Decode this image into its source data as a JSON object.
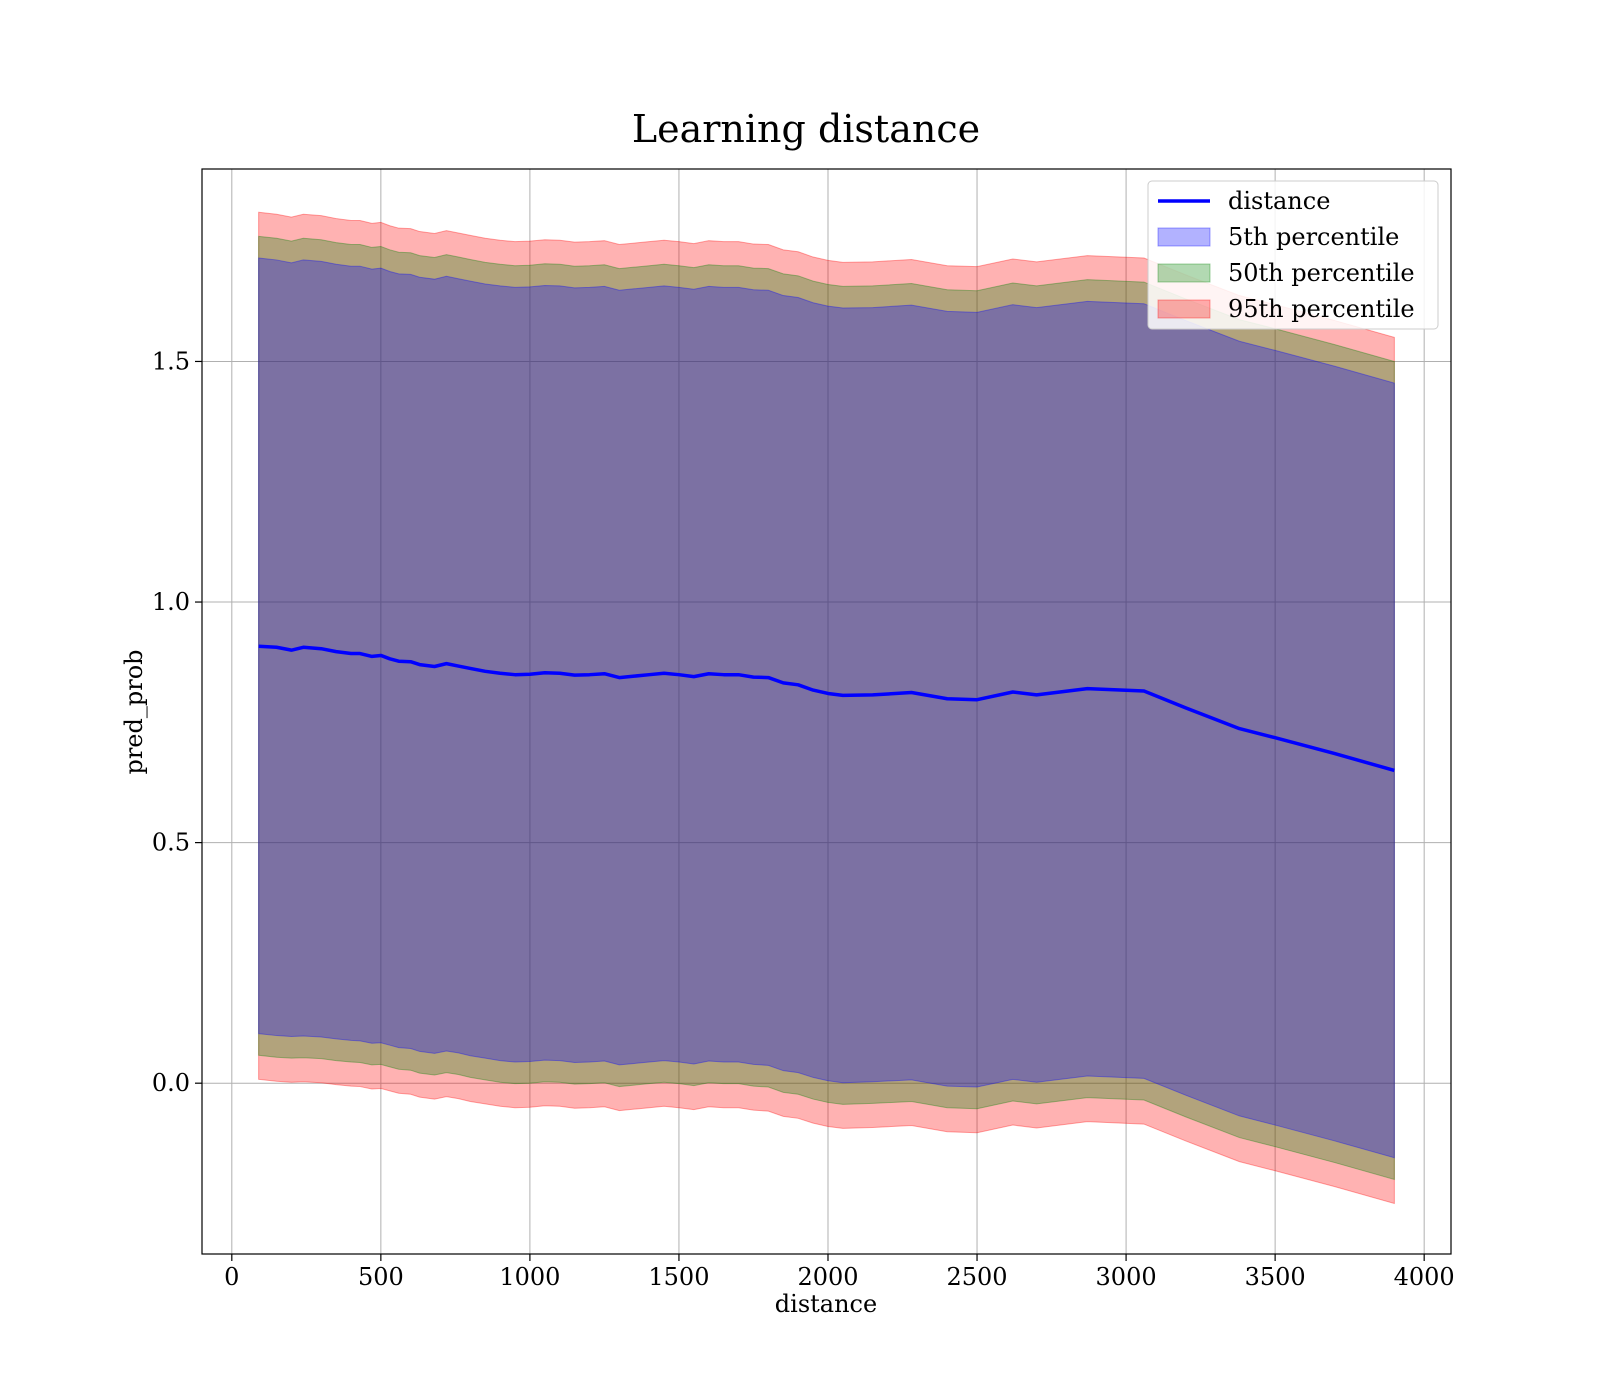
{
  "chart_data": {
    "type": "area",
    "title": "Learning distance",
    "xlabel": "distance",
    "ylabel": "pred_prob",
    "xlim": [
      -100,
      4090
    ],
    "ylim": [
      -0.355,
      1.9
    ],
    "xticks": [
      0,
      500,
      1000,
      1500,
      2000,
      2500,
      3000,
      3500,
      4000
    ],
    "xtick_labels": [
      "0",
      "500",
      "1000",
      "1500",
      "2000",
      "2500",
      "3000",
      "3500",
      "4000"
    ],
    "yticks": [
      0.0,
      0.5,
      1.0,
      1.5
    ],
    "ytick_labels": [
      "0.0",
      "0.5",
      "1.0",
      "1.5"
    ],
    "grid": true,
    "legend_position": "top-right",
    "legend": [
      {
        "label": "distance",
        "kind": "line",
        "color": "#0000ff"
      },
      {
        "label": "5th percentile",
        "kind": "band",
        "color": "#0000ff"
      },
      {
        "label": "50th percentile",
        "kind": "band",
        "color": "#008000"
      },
      {
        "label": "95th percentile",
        "kind": "band",
        "color": "#ff0000"
      }
    ],
    "x": [
      90,
      150,
      200,
      240,
      300,
      350,
      400,
      430,
      470,
      500,
      530,
      560,
      600,
      630,
      680,
      720,
      760,
      800,
      850,
      900,
      950,
      1000,
      1050,
      1100,
      1150,
      1200,
      1250,
      1300,
      1350,
      1400,
      1450,
      1500,
      1550,
      1600,
      1650,
      1700,
      1750,
      1800,
      1850,
      1900,
      1950,
      2000,
      2050,
      2150,
      2280,
      2400,
      2500,
      2620,
      2700,
      2870,
      3060,
      3200,
      3380,
      3500,
      3700,
      3900
    ],
    "series": [
      {
        "name": "distance",
        "color": "#0000ff",
        "values": [
          0.908,
          0.906,
          0.9,
          0.906,
          0.903,
          0.897,
          0.893,
          0.893,
          0.887,
          0.889,
          0.882,
          0.877,
          0.876,
          0.87,
          0.866,
          0.872,
          0.867,
          0.862,
          0.856,
          0.852,
          0.849,
          0.85,
          0.853,
          0.852,
          0.848,
          0.849,
          0.851,
          0.843,
          0.846,
          0.849,
          0.852,
          0.849,
          0.845,
          0.851,
          0.849,
          0.849,
          0.844,
          0.843,
          0.832,
          0.828,
          0.817,
          0.81,
          0.806,
          0.807,
          0.812,
          0.799,
          0.797,
          0.813,
          0.807,
          0.82,
          0.815,
          0.78,
          0.737,
          0.718,
          0.685,
          0.65
        ]
      }
    ],
    "bands": [
      {
        "name": "95th percentile",
        "color": "#ff0000",
        "lower": [
          0.008,
          0.004,
          0.002,
          0.003,
          0.001,
          -0.003,
          -0.006,
          -0.007,
          -0.012,
          -0.011,
          -0.016,
          -0.021,
          -0.023,
          -0.029,
          -0.033,
          -0.028,
          -0.032,
          -0.038,
          -0.043,
          -0.048,
          -0.051,
          -0.05,
          -0.047,
          -0.048,
          -0.052,
          -0.051,
          -0.049,
          -0.057,
          -0.054,
          -0.051,
          -0.048,
          -0.051,
          -0.055,
          -0.049,
          -0.051,
          -0.051,
          -0.056,
          -0.058,
          -0.069,
          -0.073,
          -0.083,
          -0.09,
          -0.094,
          -0.092,
          -0.088,
          -0.101,
          -0.103,
          -0.087,
          -0.093,
          -0.08,
          -0.085,
          -0.12,
          -0.163,
          -0.182,
          -0.215,
          -0.25
        ],
        "upper": [
          1.81,
          1.806,
          1.8,
          1.806,
          1.803,
          1.797,
          1.793,
          1.793,
          1.787,
          1.789,
          1.782,
          1.777,
          1.776,
          1.77,
          1.766,
          1.772,
          1.767,
          1.762,
          1.756,
          1.752,
          1.749,
          1.75,
          1.753,
          1.752,
          1.748,
          1.749,
          1.751,
          1.743,
          1.746,
          1.749,
          1.752,
          1.749,
          1.745,
          1.751,
          1.749,
          1.749,
          1.744,
          1.743,
          1.732,
          1.728,
          1.717,
          1.71,
          1.706,
          1.707,
          1.712,
          1.699,
          1.697,
          1.713,
          1.707,
          1.72,
          1.715,
          1.68,
          1.637,
          1.618,
          1.585,
          1.55
        ]
      },
      {
        "name": "50th percentile",
        "color": "#008000",
        "lower": [
          0.058,
          0.054,
          0.052,
          0.053,
          0.051,
          0.047,
          0.044,
          0.043,
          0.038,
          0.039,
          0.034,
          0.029,
          0.027,
          0.021,
          0.017,
          0.022,
          0.018,
          0.012,
          0.007,
          0.002,
          -0.001,
          0.0,
          0.003,
          0.002,
          -0.002,
          -0.001,
          0.001,
          -0.007,
          -0.004,
          -0.001,
          0.002,
          -0.001,
          -0.005,
          0.001,
          -0.001,
          -0.001,
          -0.006,
          -0.008,
          -0.019,
          -0.023,
          -0.033,
          -0.04,
          -0.044,
          -0.042,
          -0.038,
          -0.051,
          -0.053,
          -0.037,
          -0.043,
          -0.03,
          -0.035,
          -0.07,
          -0.113,
          -0.132,
          -0.165,
          -0.2
        ],
        "upper": [
          1.76,
          1.756,
          1.75,
          1.756,
          1.753,
          1.747,
          1.743,
          1.743,
          1.737,
          1.739,
          1.732,
          1.727,
          1.726,
          1.72,
          1.716,
          1.722,
          1.717,
          1.712,
          1.706,
          1.702,
          1.699,
          1.7,
          1.703,
          1.702,
          1.698,
          1.699,
          1.701,
          1.693,
          1.696,
          1.699,
          1.702,
          1.699,
          1.695,
          1.701,
          1.699,
          1.699,
          1.694,
          1.693,
          1.682,
          1.678,
          1.667,
          1.66,
          1.656,
          1.657,
          1.662,
          1.649,
          1.647,
          1.663,
          1.657,
          1.67,
          1.665,
          1.63,
          1.587,
          1.568,
          1.535,
          1.5
        ]
      },
      {
        "name": "5th percentile",
        "color": "#0000ff",
        "lower": [
          0.103,
          0.099,
          0.097,
          0.098,
          0.096,
          0.092,
          0.089,
          0.088,
          0.083,
          0.084,
          0.079,
          0.074,
          0.072,
          0.066,
          0.062,
          0.067,
          0.063,
          0.057,
          0.052,
          0.047,
          0.044,
          0.045,
          0.048,
          0.047,
          0.043,
          0.044,
          0.046,
          0.038,
          0.041,
          0.044,
          0.047,
          0.044,
          0.04,
          0.046,
          0.044,
          0.044,
          0.039,
          0.037,
          0.026,
          0.022,
          0.012,
          0.005,
          0.001,
          0.003,
          0.007,
          -0.006,
          -0.008,
          0.008,
          0.002,
          0.015,
          0.01,
          -0.025,
          -0.068,
          -0.087,
          -0.12,
          -0.155
        ],
        "upper": [
          1.715,
          1.711,
          1.705,
          1.711,
          1.708,
          1.702,
          1.698,
          1.698,
          1.692,
          1.694,
          1.687,
          1.682,
          1.681,
          1.675,
          1.671,
          1.677,
          1.672,
          1.667,
          1.661,
          1.657,
          1.654,
          1.655,
          1.658,
          1.657,
          1.653,
          1.654,
          1.656,
          1.648,
          1.651,
          1.654,
          1.657,
          1.654,
          1.65,
          1.656,
          1.654,
          1.654,
          1.649,
          1.648,
          1.637,
          1.633,
          1.622,
          1.615,
          1.611,
          1.612,
          1.617,
          1.604,
          1.602,
          1.618,
          1.612,
          1.625,
          1.62,
          1.585,
          1.542,
          1.523,
          1.49,
          1.455
        ]
      }
    ]
  }
}
